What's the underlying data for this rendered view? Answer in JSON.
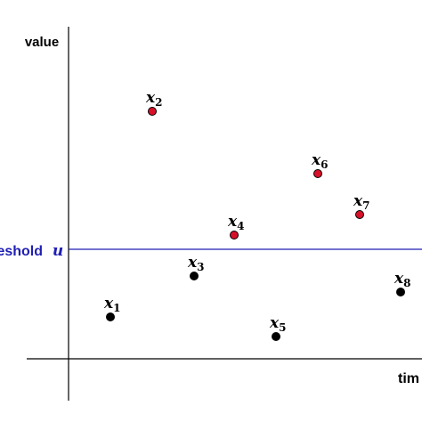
{
  "axes": {
    "y_label": "value",
    "x_label": "tim"
  },
  "threshold": {
    "name": "eshold",
    "symbol": "u",
    "color": "#1f1fb4"
  },
  "points": [
    {
      "var": "x",
      "sub": "1",
      "color": "#000000"
    },
    {
      "var": "x",
      "sub": "2",
      "color": "#d8102a"
    },
    {
      "var": "x",
      "sub": "3",
      "color": "#000000"
    },
    {
      "var": "x",
      "sub": "4",
      "color": "#d8102a"
    },
    {
      "var": "x",
      "sub": "5",
      "color": "#000000"
    },
    {
      "var": "x",
      "sub": "6",
      "color": "#d8102a"
    },
    {
      "var": "x",
      "sub": "7",
      "color": "#d8102a"
    },
    {
      "var": "x",
      "sub": "8",
      "color": "#000000"
    }
  ]
}
